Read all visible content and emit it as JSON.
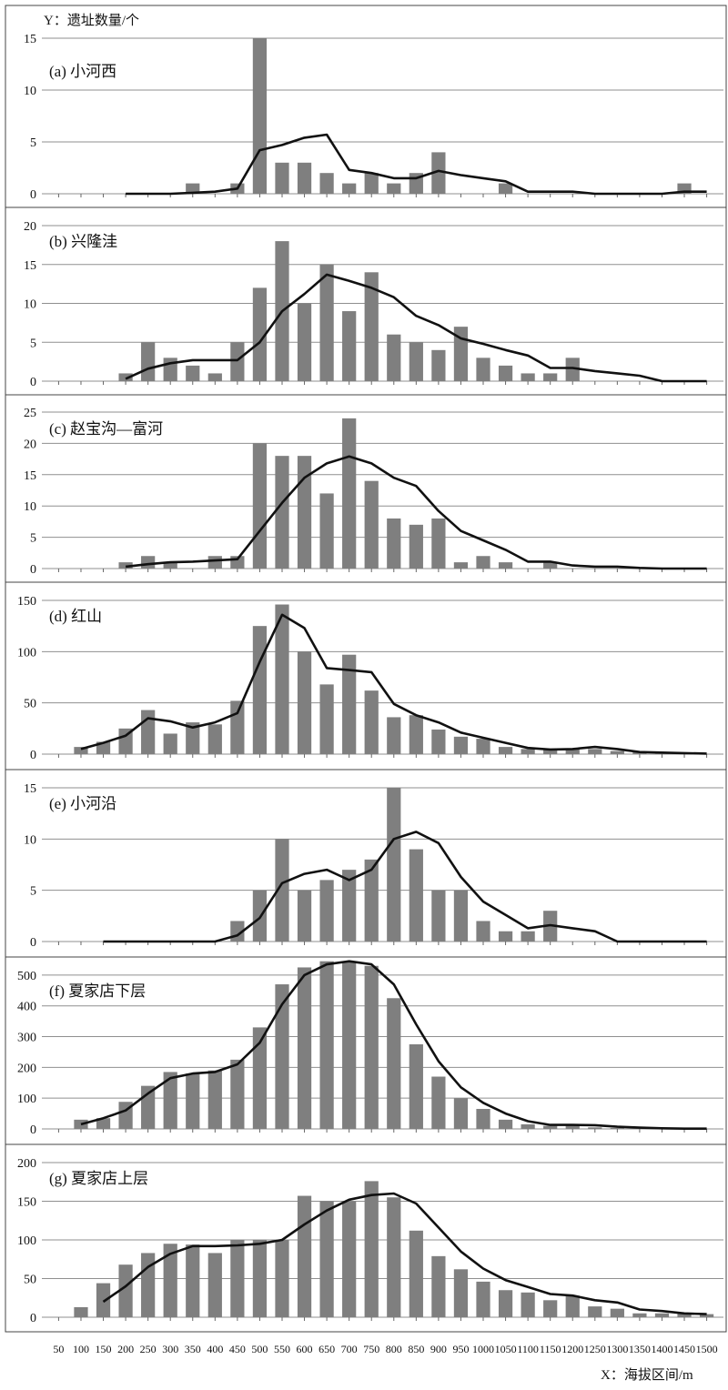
{
  "y_axis_title": "Y：遗址数量/个",
  "x_axis_title": "X：海拔区间/m",
  "colors": {
    "bar": "#7f7f7f",
    "line": "#111111",
    "grid": "#8f8f8f"
  },
  "chart_data": [
    {
      "type": "bar",
      "title": "(a) 小河西",
      "x": [
        50,
        100,
        150,
        200,
        250,
        300,
        350,
        400,
        450,
        500,
        550,
        600,
        650,
        700,
        750,
        800,
        850,
        900,
        950,
        1000,
        1050,
        1100,
        1150,
        1200,
        1250,
        1300,
        1350,
        1400,
        1450,
        1500
      ],
      "values": [
        0,
        0,
        0,
        0,
        0,
        0,
        1,
        0,
        1,
        15,
        3,
        3,
        2,
        1,
        2,
        1,
        2,
        4,
        0,
        0,
        1,
        0,
        0,
        0,
        0,
        0,
        0,
        0,
        1,
        0
      ],
      "line": [
        [
          200,
          0
        ],
        [
          250,
          0
        ],
        [
          300,
          0
        ],
        [
          350,
          0.1
        ],
        [
          400,
          0.2
        ],
        [
          450,
          0.5
        ],
        [
          500,
          4.2
        ],
        [
          550,
          4.7
        ],
        [
          600,
          5.4
        ],
        [
          650,
          5.7
        ],
        [
          700,
          2.3
        ],
        [
          750,
          2
        ],
        [
          800,
          1.5
        ],
        [
          850,
          1.5
        ],
        [
          900,
          2.2
        ],
        [
          950,
          1.8
        ],
        [
          1000,
          1.5
        ],
        [
          1050,
          1.2
        ],
        [
          1100,
          0.2
        ],
        [
          1150,
          0.2
        ],
        [
          1200,
          0.2
        ],
        [
          1250,
          0
        ],
        [
          1300,
          0
        ],
        [
          1350,
          0
        ],
        [
          1400,
          0
        ],
        [
          1450,
          0.2
        ],
        [
          1500,
          0.2
        ]
      ],
      "ylim": [
        0,
        15
      ],
      "yticks": [
        0,
        5,
        10,
        15
      ]
    },
    {
      "type": "bar",
      "title": "(b) 兴隆洼",
      "x": [
        50,
        100,
        150,
        200,
        250,
        300,
        350,
        400,
        450,
        500,
        550,
        600,
        650,
        700,
        750,
        800,
        850,
        900,
        950,
        1000,
        1050,
        1100,
        1150,
        1200,
        1250,
        1300,
        1350,
        1400,
        1450,
        1500
      ],
      "values": [
        0,
        0,
        0,
        1,
        5,
        3,
        2,
        1,
        5,
        12,
        18,
        10,
        15,
        9,
        14,
        6,
        5,
        4,
        7,
        3,
        2,
        1,
        1,
        3,
        0,
        0,
        0,
        0,
        0,
        0
      ],
      "line": [
        [
          200,
          0.3
        ],
        [
          250,
          1.6
        ],
        [
          300,
          2.3
        ],
        [
          350,
          2.7
        ],
        [
          400,
          2.7
        ],
        [
          450,
          2.7
        ],
        [
          500,
          5
        ],
        [
          550,
          9
        ],
        [
          600,
          11.2
        ],
        [
          650,
          13.7
        ],
        [
          700,
          12.9
        ],
        [
          750,
          12
        ],
        [
          800,
          10.8
        ],
        [
          850,
          8.4
        ],
        [
          900,
          7.2
        ],
        [
          950,
          5.5
        ],
        [
          1000,
          4.8
        ],
        [
          1050,
          4
        ],
        [
          1100,
          3.3
        ],
        [
          1150,
          1.7
        ],
        [
          1200,
          1.7
        ],
        [
          1250,
          1.3
        ],
        [
          1300,
          1
        ],
        [
          1350,
          0.7
        ],
        [
          1400,
          0
        ],
        [
          1450,
          0
        ],
        [
          1500,
          0
        ]
      ],
      "ylim": [
        0,
        20
      ],
      "yticks": [
        0,
        5,
        10,
        15,
        20
      ]
    },
    {
      "type": "bar",
      "title": "(c) 赵宝沟—富河",
      "x": [
        50,
        100,
        150,
        200,
        250,
        300,
        350,
        400,
        450,
        500,
        550,
        600,
        650,
        700,
        750,
        800,
        850,
        900,
        950,
        1000,
        1050,
        1100,
        1150,
        1200,
        1250,
        1300,
        1350,
        1400,
        1450,
        1500
      ],
      "values": [
        0,
        0,
        0,
        1,
        2,
        1,
        0,
        2,
        2,
        20,
        18,
        18,
        12,
        24,
        14,
        8,
        7,
        8,
        1,
        2,
        1,
        0,
        1,
        0,
        0,
        0,
        0,
        0,
        0,
        0
      ],
      "line": [
        [
          200,
          0.3
        ],
        [
          250,
          0.7
        ],
        [
          300,
          1
        ],
        [
          350,
          1.1
        ],
        [
          400,
          1.3
        ],
        [
          450,
          1.5
        ],
        [
          500,
          6
        ],
        [
          550,
          10.5
        ],
        [
          600,
          14.5
        ],
        [
          650,
          16.8
        ],
        [
          700,
          17.9
        ],
        [
          750,
          16.8
        ],
        [
          800,
          14.5
        ],
        [
          850,
          13.2
        ],
        [
          900,
          9.2
        ],
        [
          950,
          6
        ],
        [
          1000,
          4.5
        ],
        [
          1050,
          3
        ],
        [
          1100,
          1.1
        ],
        [
          1150,
          1.1
        ],
        [
          1200,
          0.5
        ],
        [
          1250,
          0.3
        ],
        [
          1300,
          0.3
        ],
        [
          1350,
          0.1
        ],
        [
          1400,
          0
        ],
        [
          1450,
          0
        ],
        [
          1500,
          0
        ]
      ],
      "ylim": [
        0,
        25
      ],
      "yticks": [
        0,
        5,
        10,
        15,
        20,
        25
      ]
    },
    {
      "type": "bar",
      "title": "(d) 红山",
      "x": [
        50,
        100,
        150,
        200,
        250,
        300,
        350,
        400,
        450,
        500,
        550,
        600,
        650,
        700,
        750,
        800,
        850,
        900,
        950,
        1000,
        1050,
        1100,
        1150,
        1200,
        1250,
        1300,
        1350,
        1400,
        1450,
        1500
      ],
      "values": [
        0,
        7,
        12,
        25,
        43,
        20,
        31,
        29,
        52,
        125,
        146,
        100,
        68,
        97,
        62,
        36,
        38,
        24,
        17,
        15,
        7,
        5,
        4,
        5,
        5,
        3,
        2,
        1,
        1,
        0
      ],
      "line": [
        [
          100,
          5
        ],
        [
          150,
          11
        ],
        [
          200,
          18
        ],
        [
          250,
          35
        ],
        [
          300,
          32
        ],
        [
          350,
          26
        ],
        [
          400,
          31
        ],
        [
          450,
          40
        ],
        [
          500,
          90
        ],
        [
          550,
          136
        ],
        [
          600,
          123
        ],
        [
          650,
          84
        ],
        [
          700,
          82
        ],
        [
          750,
          80
        ],
        [
          800,
          49
        ],
        [
          850,
          38
        ],
        [
          900,
          31
        ],
        [
          950,
          21
        ],
        [
          1000,
          16
        ],
        [
          1050,
          11
        ],
        [
          1100,
          6
        ],
        [
          1150,
          4.5
        ],
        [
          1200,
          5
        ],
        [
          1250,
          7
        ],
        [
          1300,
          5
        ],
        [
          1350,
          2
        ],
        [
          1400,
          1.5
        ],
        [
          1450,
          1
        ],
        [
          1500,
          0.5
        ]
      ],
      "ylim": [
        0,
        150
      ],
      "yticks": [
        0,
        50,
        100,
        150
      ]
    },
    {
      "type": "bar",
      "title": "(e) 小河沿",
      "x": [
        50,
        100,
        150,
        200,
        250,
        300,
        350,
        400,
        450,
        500,
        550,
        600,
        650,
        700,
        750,
        800,
        850,
        900,
        950,
        1000,
        1050,
        1100,
        1150,
        1200,
        1250,
        1300,
        1350,
        1400,
        1450,
        1500
      ],
      "values": [
        0,
        0,
        0,
        0,
        0,
        0,
        0,
        0,
        2,
        5,
        10,
        5,
        6,
        7,
        8,
        15,
        9,
        5,
        5,
        2,
        1,
        1,
        3,
        0,
        0,
        0,
        0,
        0,
        0,
        0
      ],
      "line": [
        [
          150,
          0
        ],
        [
          200,
          0
        ],
        [
          250,
          0
        ],
        [
          300,
          0
        ],
        [
          350,
          0
        ],
        [
          400,
          0
        ],
        [
          450,
          0.6
        ],
        [
          500,
          2.3
        ],
        [
          550,
          5.7
        ],
        [
          600,
          6.6
        ],
        [
          650,
          7
        ],
        [
          700,
          6
        ],
        [
          750,
          7
        ],
        [
          800,
          10
        ],
        [
          850,
          10.7
        ],
        [
          900,
          9.6
        ],
        [
          950,
          6.3
        ],
        [
          1000,
          3.9
        ],
        [
          1050,
          2.6
        ],
        [
          1100,
          1.3
        ],
        [
          1150,
          1.6
        ],
        [
          1200,
          1.3
        ],
        [
          1250,
          1
        ],
        [
          1300,
          0
        ],
        [
          1350,
          0
        ],
        [
          1400,
          0
        ],
        [
          1450,
          0
        ],
        [
          1500,
          0
        ]
      ],
      "ylim": [
        0,
        15
      ],
      "yticks": [
        0,
        5,
        10,
        15
      ]
    },
    {
      "type": "bar",
      "title": "(f) 夏家店下层",
      "x": [
        50,
        100,
        150,
        200,
        250,
        300,
        350,
        400,
        450,
        500,
        550,
        600,
        650,
        700,
        750,
        800,
        850,
        900,
        950,
        1000,
        1050,
        1100,
        1150,
        1200,
        1250,
        1300,
        1350,
        1400,
        1450,
        1500
      ],
      "values": [
        0,
        30,
        35,
        88,
        140,
        185,
        180,
        190,
        225,
        330,
        470,
        525,
        545,
        545,
        530,
        425,
        275,
        170,
        100,
        65,
        30,
        15,
        10,
        15,
        5,
        3,
        2,
        1,
        1,
        0
      ],
      "line": [
        [
          100,
          15
        ],
        [
          150,
          35
        ],
        [
          200,
          60
        ],
        [
          250,
          115
        ],
        [
          300,
          165
        ],
        [
          350,
          180
        ],
        [
          400,
          185
        ],
        [
          450,
          210
        ],
        [
          500,
          280
        ],
        [
          550,
          405
        ],
        [
          600,
          500
        ],
        [
          650,
          535
        ],
        [
          700,
          545
        ],
        [
          750,
          535
        ],
        [
          800,
          470
        ],
        [
          850,
          340
        ],
        [
          900,
          220
        ],
        [
          950,
          135
        ],
        [
          1000,
          85
        ],
        [
          1050,
          50
        ],
        [
          1100,
          25
        ],
        [
          1150,
          13
        ],
        [
          1200,
          13
        ],
        [
          1250,
          12
        ],
        [
          1300,
          7
        ],
        [
          1350,
          4
        ],
        [
          1400,
          2
        ],
        [
          1450,
          1
        ],
        [
          1500,
          1
        ]
      ],
      "ylim": [
        0,
        550
      ],
      "yticks": [
        0,
        100,
        200,
        300,
        400,
        500
      ]
    },
    {
      "type": "bar",
      "title": "(g) 夏家店上层",
      "x": [
        50,
        100,
        150,
        200,
        250,
        300,
        350,
        400,
        450,
        500,
        550,
        600,
        650,
        700,
        750,
        800,
        850,
        900,
        950,
        1000,
        1050,
        1100,
        1150,
        1200,
        1250,
        1300,
        1350,
        1400,
        1450,
        1500
      ],
      "values": [
        0,
        13,
        44,
        68,
        83,
        95,
        94,
        83,
        100,
        100,
        100,
        157,
        150,
        150,
        176,
        155,
        112,
        79,
        62,
        46,
        35,
        32,
        22,
        28,
        14,
        11,
        5,
        5,
        5,
        4
      ],
      "line": [
        [
          150,
          20
        ],
        [
          200,
          40
        ],
        [
          250,
          65
        ],
        [
          300,
          82
        ],
        [
          350,
          92
        ],
        [
          400,
          92
        ],
        [
          450,
          93
        ],
        [
          500,
          95
        ],
        [
          550,
          100
        ],
        [
          600,
          120
        ],
        [
          650,
          138
        ],
        [
          700,
          152
        ],
        [
          750,
          158
        ],
        [
          800,
          160
        ],
        [
          850,
          147
        ],
        [
          900,
          116
        ],
        [
          950,
          85
        ],
        [
          1000,
          63
        ],
        [
          1050,
          48
        ],
        [
          1100,
          39
        ],
        [
          1150,
          30
        ],
        [
          1200,
          28
        ],
        [
          1250,
          22
        ],
        [
          1300,
          19
        ],
        [
          1350,
          10
        ],
        [
          1400,
          8
        ],
        [
          1450,
          5
        ],
        [
          1500,
          4
        ]
      ],
      "ylim": [
        0,
        200
      ],
      "yticks": [
        0,
        50,
        100,
        150,
        200
      ]
    }
  ]
}
